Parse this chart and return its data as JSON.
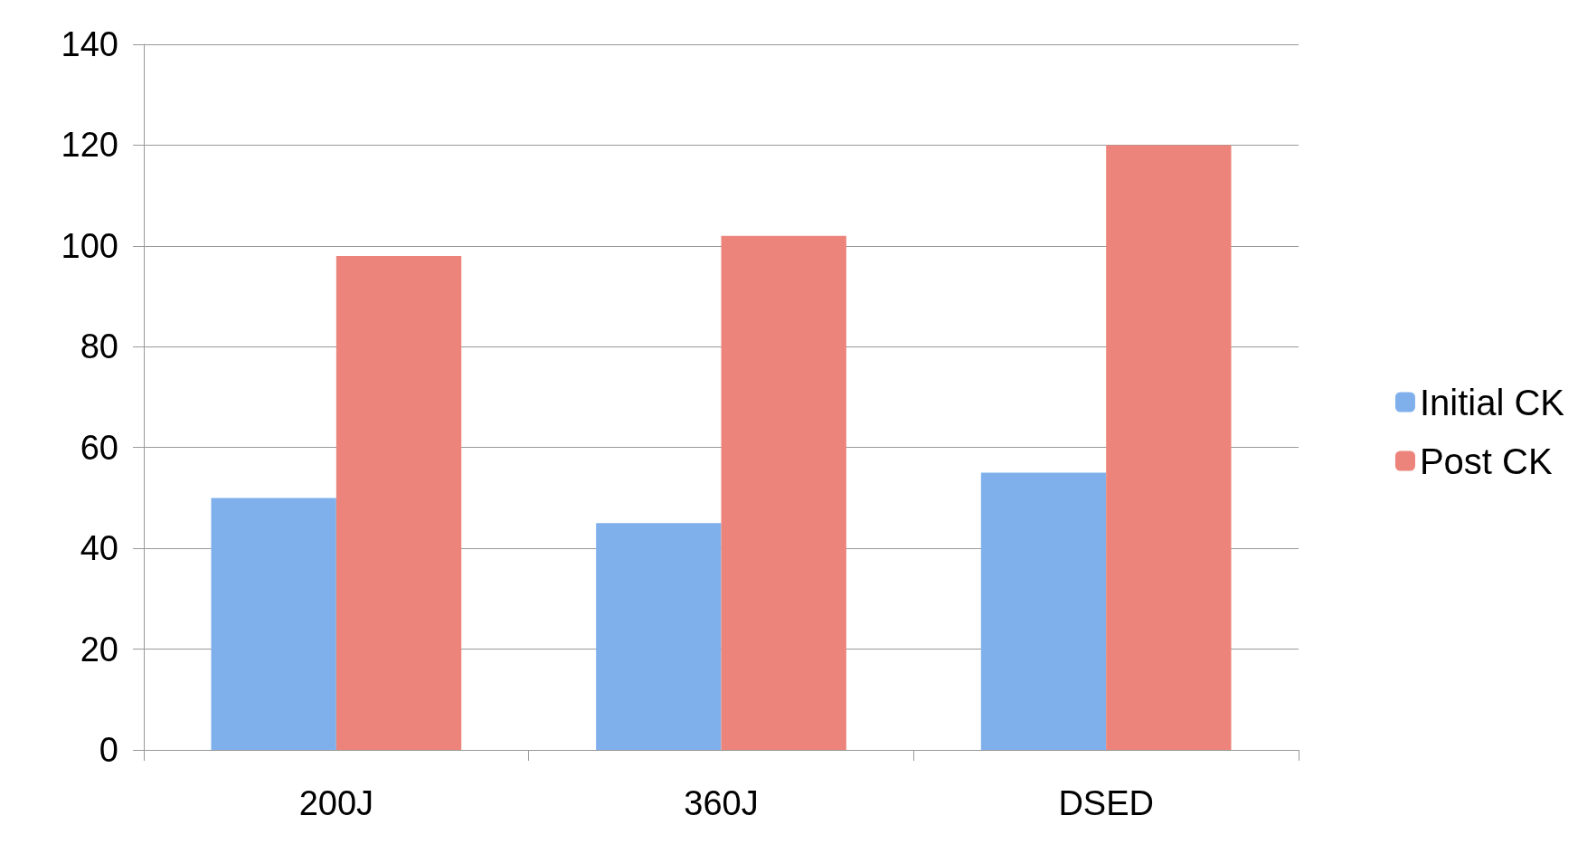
{
  "chart_data": {
    "type": "bar",
    "categories": [
      "200J",
      "360J",
      "DSED"
    ],
    "series": [
      {
        "name": "Initial CK",
        "color": "#7fb0ec",
        "values": [
          50,
          45,
          55
        ]
      },
      {
        "name": "Post CK",
        "color": "#ec847b",
        "values": [
          98,
          102,
          120
        ]
      }
    ],
    "ylim": [
      0,
      140
    ],
    "yticks": [
      0,
      20,
      40,
      60,
      80,
      100,
      120,
      140
    ],
    "grid": "y",
    "legend": "right"
  }
}
